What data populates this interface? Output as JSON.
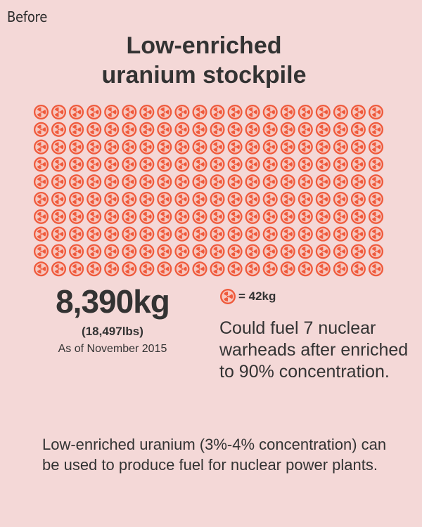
{
  "tag": "Before",
  "title": [
    "Low-enriched",
    "uranium stockpile"
  ],
  "chart_data": {
    "type": "pictogram",
    "icon": "radiation-icon",
    "icon_color": "#ef5a3c",
    "rows": 10,
    "columns": 20,
    "icon_count": 200,
    "unit_value_kg": 42,
    "total_kg": 8390
  },
  "stat": {
    "value": "8,390kg",
    "lbs": "(18,497lbs)",
    "as_of": "As of November 2015"
  },
  "legend": {
    "label": "= 42kg"
  },
  "fuel_text": "Could fuel 7 nuclear warheads after enriched to 90% concentration.",
  "note": "Low-enriched uranium (3%-4% concentration) can be used to produce fuel for nuclear power plants.",
  "colors": {
    "background": "#f4d8d7",
    "accent": "#ef5a3c",
    "text": "#333333"
  }
}
